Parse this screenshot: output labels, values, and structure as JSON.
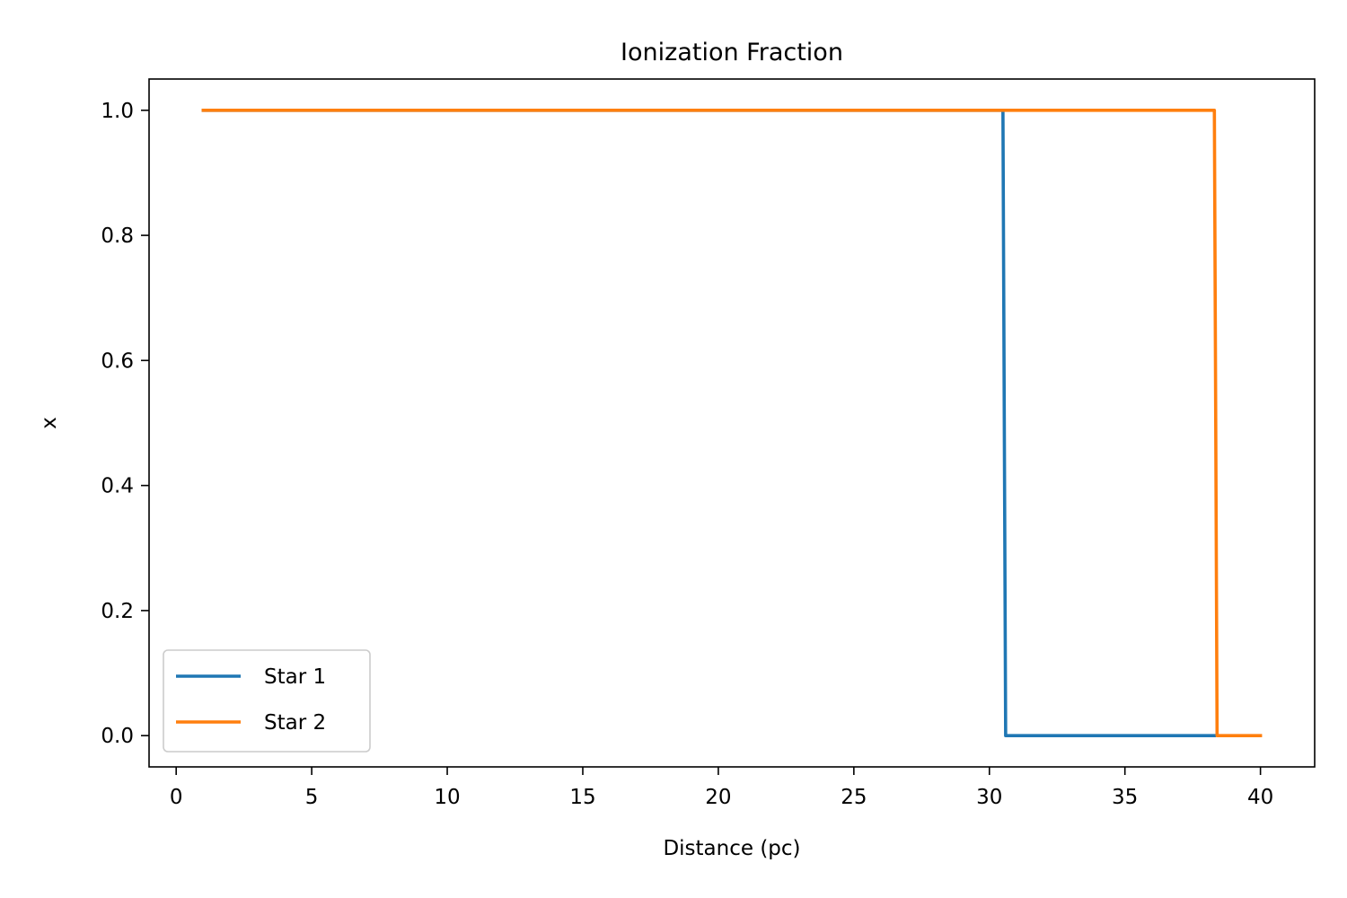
{
  "chart_data": {
    "type": "line",
    "title": "Ionization Fraction",
    "xlabel": "Distance (pc)",
    "ylabel": "x",
    "xlim": [
      -1,
      42
    ],
    "ylim": [
      -0.05,
      1.05
    ],
    "xticks": [
      0,
      5,
      10,
      15,
      20,
      25,
      30,
      35,
      40
    ],
    "xtick_labels": [
      "0",
      "5",
      "10",
      "15",
      "20",
      "25",
      "30",
      "35",
      "40"
    ],
    "yticks": [
      0.0,
      0.2,
      0.4,
      0.6,
      0.8,
      1.0
    ],
    "ytick_labels": [
      "0.0",
      "0.2",
      "0.4",
      "0.6",
      "0.8",
      "1.0"
    ],
    "grid": false,
    "legend": {
      "placement": "lower-left"
    },
    "series": [
      {
        "name": "Star 1",
        "color": "#1f77b4",
        "x": [
          1,
          5,
          10,
          15,
          20,
          25,
          30,
          30.5,
          30.6,
          35,
          38.3
        ],
        "y": [
          1.0,
          1.0,
          1.0,
          1.0,
          1.0,
          1.0,
          1.0,
          1.0,
          0.0,
          0.0,
          0.0
        ]
      },
      {
        "name": "Star 2",
        "color": "#ff7f0e",
        "x": [
          1,
          5,
          10,
          15,
          20,
          25,
          30,
          35,
          38.3,
          38.4,
          40
        ],
        "y": [
          1.0,
          1.0,
          1.0,
          1.0,
          1.0,
          1.0,
          1.0,
          1.0,
          1.0,
          0.0,
          0.0
        ]
      }
    ]
  }
}
